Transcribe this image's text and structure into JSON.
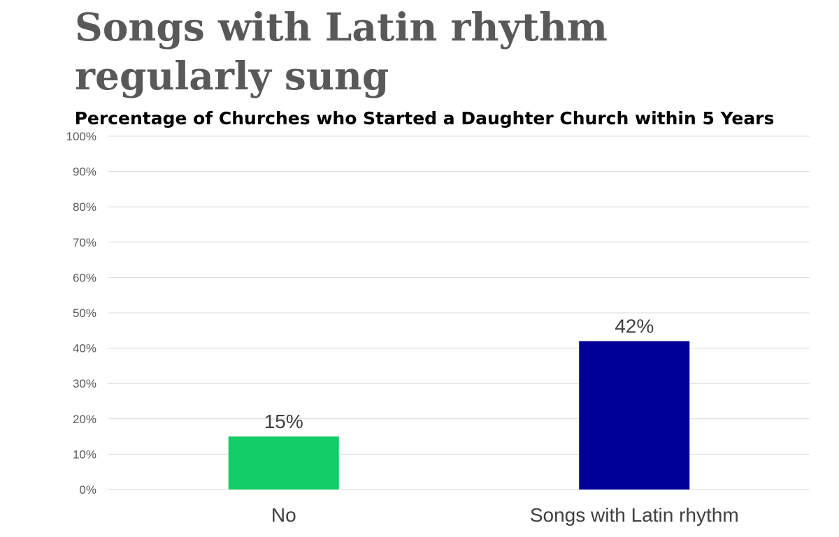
{
  "slide": {
    "title": "Songs with Latin rhythm regularly sung"
  },
  "chart_data": {
    "type": "bar",
    "title": "Percentage of Churches who Started a Daughter Church within 5 Years",
    "categories": [
      "No",
      "Songs with Latin rhythm"
    ],
    "values": [
      15,
      42
    ],
    "data_labels": [
      "15%",
      "42%"
    ],
    "bar_colors": [
      "#12cc66",
      "#000099"
    ],
    "ylim": [
      0,
      100
    ],
    "yticks": [
      0,
      10,
      20,
      30,
      40,
      50,
      60,
      70,
      80,
      90,
      100
    ],
    "ytick_labels": [
      "0%",
      "10%",
      "20%",
      "30%",
      "40%",
      "50%",
      "60%",
      "70%",
      "80%",
      "90%",
      "100%"
    ],
    "xlabel": "",
    "ylabel": "",
    "grid": true,
    "legend": "none"
  }
}
